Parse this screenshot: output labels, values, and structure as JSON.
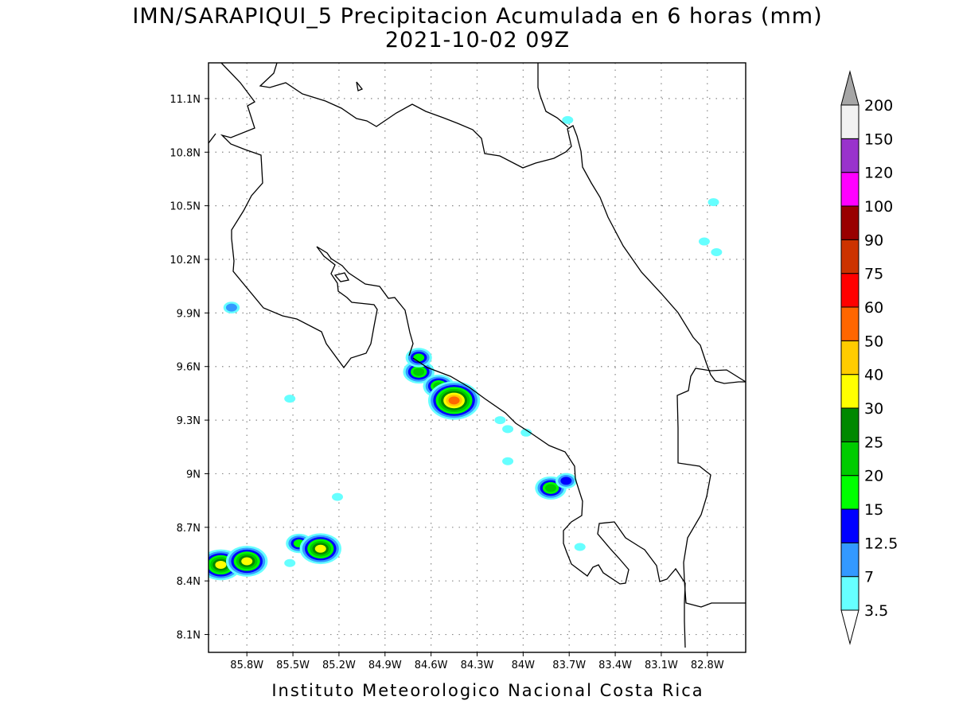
{
  "title_line1": "IMN/SARAPIQUI_5 Precipitacion Acumulada en 6 horas (mm)",
  "title_line2": "2021-10-02 09Z",
  "footer": "Instituto Meteorologico Nacional Costa Rica",
  "map": {
    "lon_range": [
      -86.05,
      -82.55
    ],
    "lat_range": [
      8.0,
      11.3
    ],
    "lon_ticks": [
      {
        "value": -85.8,
        "label": "85.8W"
      },
      {
        "value": -85.5,
        "label": "85.5W"
      },
      {
        "value": -85.2,
        "label": "85.2W"
      },
      {
        "value": -84.9,
        "label": "84.9W"
      },
      {
        "value": -84.6,
        "label": "84.6W"
      },
      {
        "value": -84.3,
        "label": "84.3W"
      },
      {
        "value": -84.0,
        "label": "84W"
      },
      {
        "value": -83.7,
        "label": "83.7W"
      },
      {
        "value": -83.4,
        "label": "83.4W"
      },
      {
        "value": -83.1,
        "label": "83.1W"
      },
      {
        "value": -82.8,
        "label": "82.8W"
      }
    ],
    "lat_ticks": [
      {
        "value": 8.1,
        "label": "8.1N"
      },
      {
        "value": 8.4,
        "label": "8.4N"
      },
      {
        "value": 8.7,
        "label": "8.7N"
      },
      {
        "value": 9.0,
        "label": "9N"
      },
      {
        "value": 9.3,
        "label": "9.3N"
      },
      {
        "value": 9.6,
        "label": "9.6N"
      },
      {
        "value": 9.9,
        "label": "9.9N"
      },
      {
        "value": 10.2,
        "label": "10.2N"
      },
      {
        "value": 10.5,
        "label": "10.5N"
      },
      {
        "value": 10.8,
        "label": "10.8N"
      },
      {
        "value": 11.1,
        "label": "11.1N"
      }
    ],
    "grid": true
  },
  "colorbar": {
    "levels": [
      "3.5",
      "7",
      "12.5",
      "15",
      "20",
      "25",
      "30",
      "40",
      "50",
      "60",
      "75",
      "90",
      "100",
      "120",
      "150",
      "200"
    ],
    "colors": [
      "#ffffff",
      "#66ffff",
      "#3399ff",
      "#0000ff",
      "#00ff00",
      "#00cc00",
      "#008800",
      "#ffff00",
      "#ffcc00",
      "#ff6600",
      "#ff0000",
      "#cc3300",
      "#990000",
      "#ff00ff",
      "#9933cc",
      "#f2f2f2",
      "#a6a6a6"
    ]
  },
  "precip_cells": [
    {
      "lon": -84.68,
      "lat": 9.57,
      "level": 5
    },
    {
      "lon": -84.68,
      "lat": 9.65,
      "level": 4
    },
    {
      "lon": -84.55,
      "lat": 9.49,
      "level": 5
    },
    {
      "lon": -84.45,
      "lat": 9.41,
      "level": 9
    },
    {
      "lon": -83.82,
      "lat": 8.92,
      "level": 5
    },
    {
      "lon": -83.72,
      "lat": 8.96,
      "level": 3
    },
    {
      "lon": -85.97,
      "lat": 8.49,
      "level": 7
    },
    {
      "lon": -85.8,
      "lat": 8.51,
      "level": 7
    },
    {
      "lon": -85.46,
      "lat": 8.61,
      "level": 4
    },
    {
      "lon": -85.32,
      "lat": 8.58,
      "level": 7
    },
    {
      "lon": -85.9,
      "lat": 9.93,
      "level": 2
    },
    {
      "lon": -83.71,
      "lat": 10.98,
      "level": 1
    },
    {
      "lon": -82.76,
      "lat": 10.52,
      "level": 1
    },
    {
      "lon": -82.74,
      "lat": 10.24,
      "level": 1
    },
    {
      "lon": -82.82,
      "lat": 10.3,
      "level": 1
    },
    {
      "lon": -85.52,
      "lat": 9.42,
      "level": 1
    },
    {
      "lon": -84.1,
      "lat": 9.25,
      "level": 1
    },
    {
      "lon": -83.98,
      "lat": 9.23,
      "level": 1
    },
    {
      "lon": -84.15,
      "lat": 9.3,
      "level": 1
    },
    {
      "lon": -83.63,
      "lat": 8.59,
      "level": 1
    },
    {
      "lon": -85.52,
      "lat": 8.5,
      "level": 1
    },
    {
      "lon": -85.21,
      "lat": 8.87,
      "level": 1
    },
    {
      "lon": -84.1,
      "lat": 9.07,
      "level": 1
    }
  ]
}
